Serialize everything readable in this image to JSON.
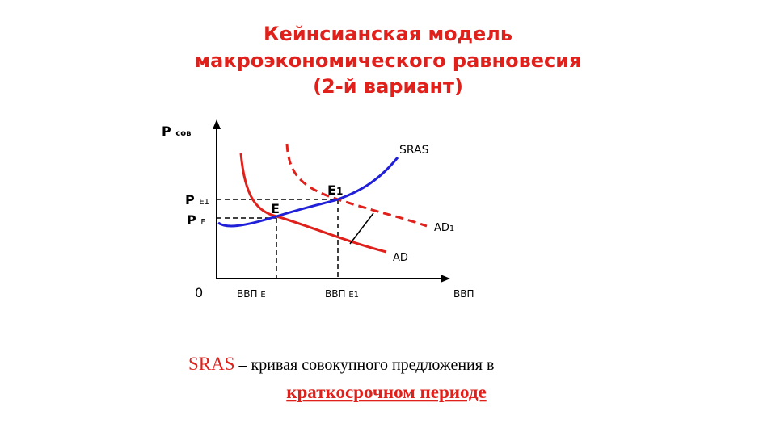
{
  "title": {
    "lines": [
      "Кейнсианская модель",
      "макроэкономического равновесия",
      "(2-й вариант)"
    ]
  },
  "diagram": {
    "y_axis_label": {
      "main": "P",
      "sub": "сов"
    },
    "price_labels": [
      {
        "main": "P",
        "sub": "E1"
      },
      {
        "main": "P",
        "sub": "E"
      }
    ],
    "origin": "0",
    "x_labels": [
      {
        "main": "ВВП",
        "sub": "E"
      },
      {
        "main": "ВВП",
        "sub": "E1"
      }
    ],
    "x_axis_label": "ВВП",
    "curves": {
      "sras": "SRAS",
      "ad": "AD",
      "ad1": {
        "main": "AD",
        "sub": "1"
      }
    },
    "points": [
      {
        "main": "E"
      },
      {
        "main": "E",
        "sub": "1"
      }
    ]
  },
  "caption": {
    "term": "SRAS",
    "text": " – кривая совокупного предложения в",
    "underlined": "краткосрочном периоде"
  }
}
